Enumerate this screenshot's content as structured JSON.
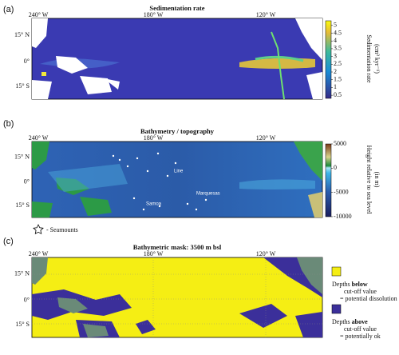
{
  "panels": [
    {
      "label": "(a)",
      "title": "Sedimentation rate",
      "lon_labels": [
        "240° W",
        "180° W",
        "120° W"
      ],
      "lat_labels": [
        "15° N",
        "0°",
        "15° S"
      ],
      "colorbar": {
        "range": [
          0.3,
          5.3
        ],
        "ticks": [
          0.5,
          1,
          1.5,
          2,
          2.5,
          3,
          3.5,
          4,
          4.5,
          5
        ],
        "label": [
          "Sedimentation rate",
          "(cm³ kyr⁻¹)"
        ]
      }
    },
    {
      "label": "(b)",
      "title": "Bathymetry / topography",
      "lon_labels": [
        "240° W",
        "180° W",
        "120° W"
      ],
      "lat_labels": [
        "15° N",
        "0°",
        "15° S"
      ],
      "colorbar": {
        "range": [
          -10000,
          5000
        ],
        "ticks": [
          5000,
          0,
          -5000,
          -10000
        ],
        "label": [
          "Height relative to sea level",
          "(in m)"
        ]
      },
      "place_names": [
        "Line",
        "Marquesas",
        "Samoa"
      ],
      "legend": "- Seamounts"
    },
    {
      "label": "(c)",
      "title": "Bathymetric mask: 3500 m bsl",
      "lon_labels": [
        "240° W",
        "180° W",
        "120° W"
      ],
      "lat_labels": [
        "15° N",
        "0°",
        "15° S"
      ],
      "legend": [
        {
          "line1": [
            "Depths",
            "below"
          ],
          "line2": "cut-off value",
          "line3": "= potential dissolution"
        },
        {
          "line1": [
            "Depths",
            "above"
          ],
          "line2": "cut-off value",
          "line3": "= potentially ok"
        }
      ]
    }
  ]
}
